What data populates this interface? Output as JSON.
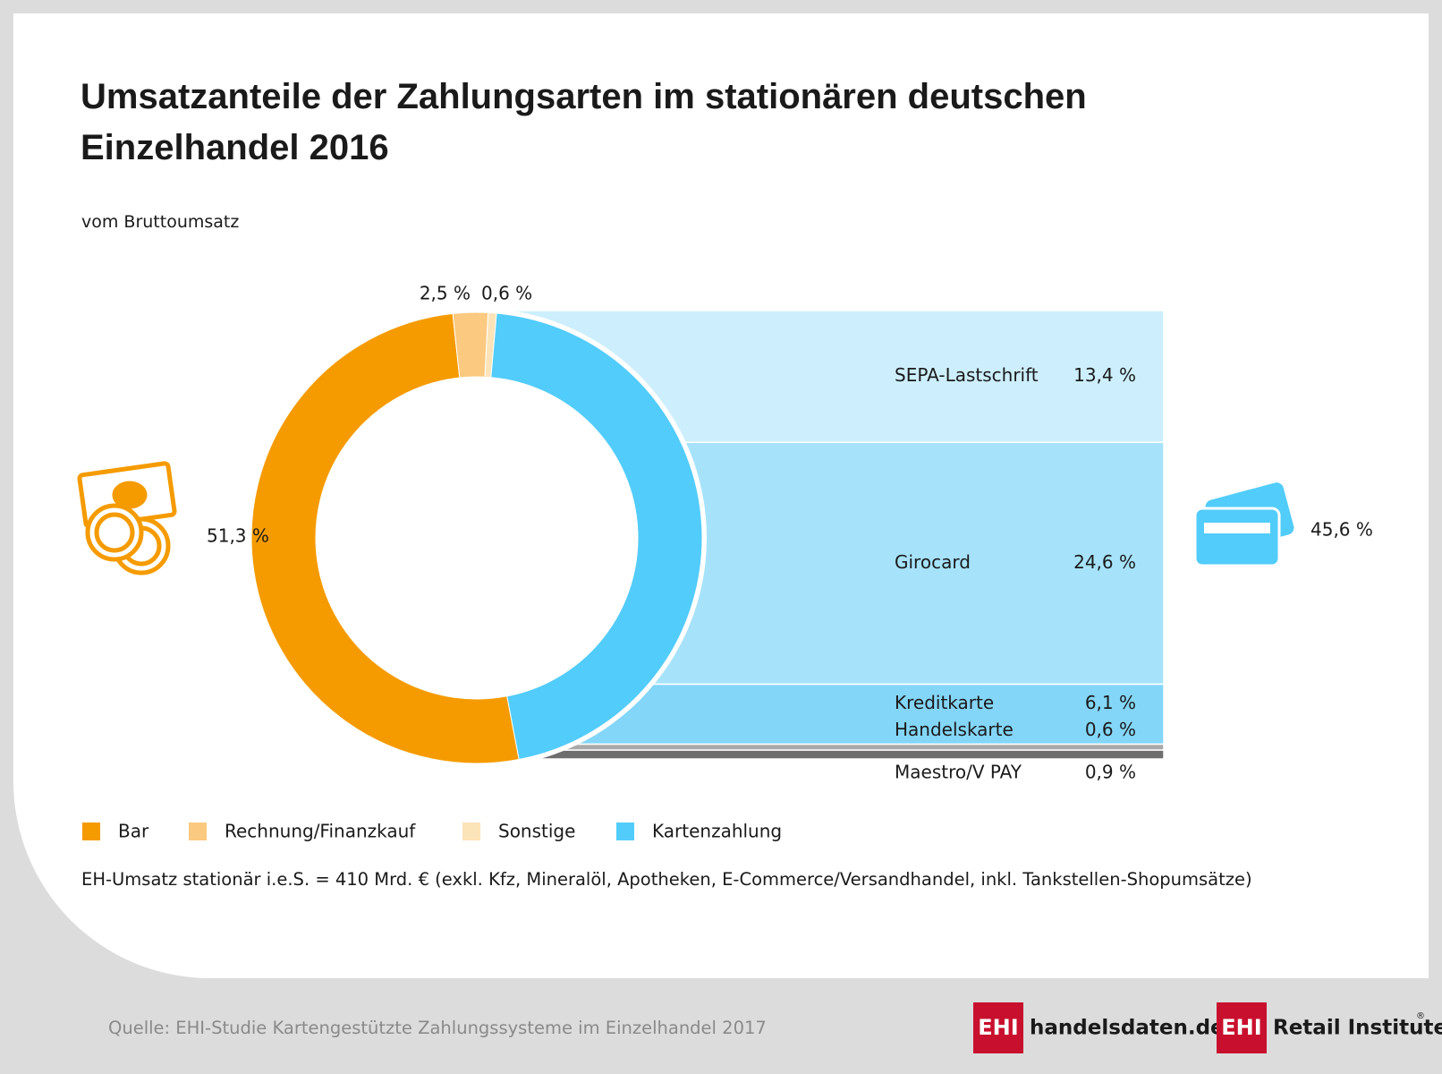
{
  "chart_data": {
    "type": "pie",
    "title": "Umsatzanteile der Zahlungsarten im stationären deutschen Einzelhandel 2016",
    "subtitle": "vom Bruttoumsatz",
    "categories": [
      "Bar",
      "Rechnung/Finanzkauf",
      "Sonstige",
      "Kartenzahlung"
    ],
    "values": [
      51.3,
      2.5,
      0.6,
      45.6
    ],
    "value_labels": [
      "51,3 %",
      "2,5 %",
      "0,6 %",
      "45,6 %"
    ],
    "colors": [
      "#f59b00",
      "#fbc97f",
      "#fde3b8",
      "#52ccfa"
    ],
    "breakdown": {
      "categories": [
        "SEPA-Lastschrift",
        "Girocard",
        "Kreditkarte",
        "Handelskarte",
        "Maestro/V PAY"
      ],
      "values": [
        13.4,
        24.6,
        6.1,
        0.6,
        0.9
      ],
      "value_labels": [
        "13,4 %",
        "24,6 %",
        "6,1 %",
        "0,6 %",
        "0,9 %"
      ],
      "colors": [
        "#cdeffd",
        "#a6e3fb",
        "#84d6f8",
        "#a9a9a9",
        "#6e6e6e"
      ]
    },
    "note": "EH-Umsatz stationär i.e.S. = 410 Mrd. €  (exkl. Kfz, Mineralöl, Apotheken, E-Commerce/Versandhandel, inkl. Tankstellen-Shopumsätze)",
    "source": "Quelle: EHI-Studie Kartengestützte Zahlungssysteme im Einzelhandel 2017"
  },
  "branding": {
    "logo_mark": "EHI",
    "site": "handelsdaten.de",
    "institute": "Retail Institute",
    "registered": "®"
  }
}
